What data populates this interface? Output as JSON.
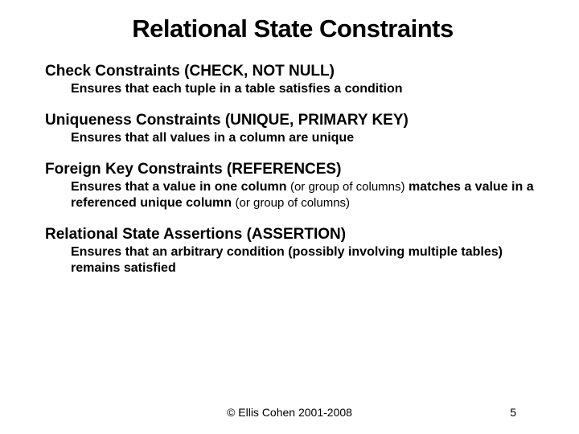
{
  "title": "Relational State Constraints",
  "sections": [
    {
      "head": "Check Constraints (CHECK, NOT NULL)",
      "body": "Ensures that each tuple in a table satisfies a condition"
    },
    {
      "head": "Uniqueness Constraints (UNIQUE, PRIMARY KEY)",
      "body": "Ensures that all values in a column are unique"
    },
    {
      "head": "Foreign Key Constraints (REFERENCES)",
      "body_html": true,
      "body_pre1": "Ensures that a value in one column ",
      "body_paren1": "(or group of columns)",
      "body_mid": " matches a value in a referenced unique column ",
      "body_paren2": "(or group of columns)"
    },
    {
      "head": "Relational State Assertions (ASSERTION)",
      "body": "Ensures that an arbitrary condition (possibly involving multiple tables) remains satisfied"
    }
  ],
  "footer": {
    "copyright": "© Ellis Cohen 2001-2008",
    "page": "5"
  },
  "colors": {
    "text": "#000000",
    "background": "#ffffff"
  }
}
